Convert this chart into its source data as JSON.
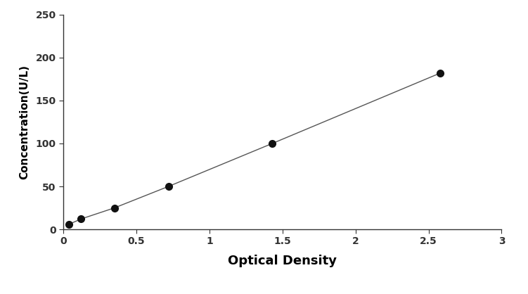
{
  "x_values": [
    0.04,
    0.12,
    0.35,
    0.72,
    1.43,
    2.58
  ],
  "y_values": [
    6,
    12,
    25,
    50,
    100,
    182
  ],
  "xlabel": "Optical Density",
  "ylabel": "Concentration(U/L)",
  "xlim": [
    0,
    3
  ],
  "ylim": [
    0,
    250
  ],
  "xticks": [
    0,
    0.5,
    1,
    1.5,
    2,
    2.5,
    3
  ],
  "xticklabels": [
    "0",
    "0.5",
    "1",
    "1.5",
    "2",
    "2.5",
    "3"
  ],
  "yticks": [
    0,
    50,
    100,
    150,
    200,
    250
  ],
  "yticklabels": [
    "0",
    "50",
    "100",
    "150",
    "200",
    "250"
  ],
  "line_color": "#555555",
  "marker_color": "#111111",
  "marker_size": 7,
  "line_width": 1.0,
  "xlabel_fontsize": 13,
  "ylabel_fontsize": 11,
  "tick_fontsize": 10,
  "background_color": "#ffffff"
}
